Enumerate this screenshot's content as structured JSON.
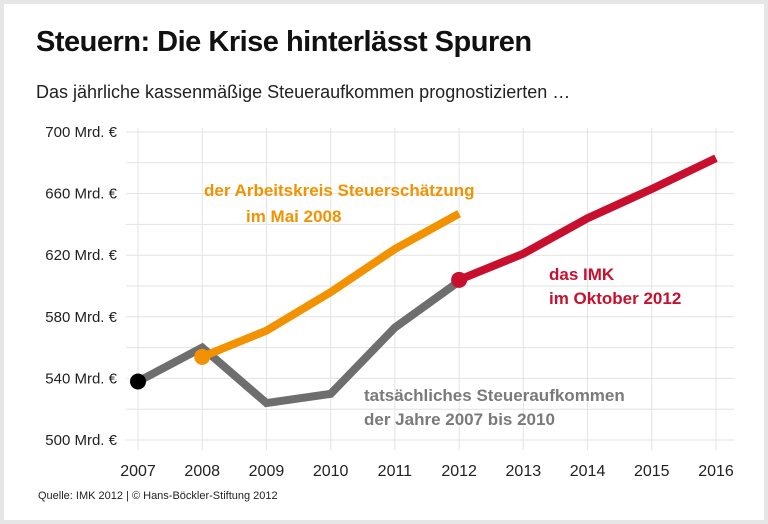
{
  "title": "Steuern: Die Krise hinterlässt Spuren",
  "subtitle": "Das jährliche kassenmäßige Steueraufkommen prognostizierten …",
  "footer": "Quelle: IMK 2012 | © Hans-Böckler-Stiftung 2012",
  "chart_data": {
    "type": "line",
    "title": "Steuern: Die Krise hinterlässt Spuren",
    "subtitle": "Das jährliche kassenmäßige Steueraufkommen prognostizierten …",
    "xlabel": "",
    "ylabel": "",
    "xlim": [
      2007,
      2016
    ],
    "ylim": [
      500,
      700
    ],
    "x_ticks": [
      "2007",
      "2008",
      "2009",
      "2010",
      "2011",
      "2012",
      "2013",
      "2014",
      "2015",
      "2016"
    ],
    "y_ticks": [
      {
        "value": 700,
        "label": "700 Mrd. €"
      },
      {
        "value": 660,
        "label": "660 Mrd. €"
      },
      {
        "value": 620,
        "label": "620 Mrd. €"
      },
      {
        "value": 580,
        "label": "580 Mrd. €"
      },
      {
        "value": 540,
        "label": "540 Mrd. €"
      },
      {
        "value": 500,
        "label": "500 Mrd. €"
      }
    ],
    "grid": true,
    "series": [
      {
        "name": "tatsächliches Steueraufkommen der Jahre 2007 bis 2010",
        "label_lines": [
          "tatsächliches Steueraufkommen",
          "der Jahre 2007 bis 2010"
        ],
        "color": "#6e6e6e",
        "points": [
          [
            2007,
            538
          ],
          [
            2008,
            560
          ],
          [
            2009,
            524
          ],
          [
            2010,
            530
          ],
          [
            2011,
            573
          ],
          [
            2012,
            603
          ]
        ],
        "start_dot_color": "#000000"
      },
      {
        "name": "der Arbeitskreis Steuerschätzung im Mai 2008",
        "label_lines": [
          "der Arbeitskreis Steuerschätzung",
          "im Mai 2008"
        ],
        "color": "#f39200",
        "points": [
          [
            2008,
            554
          ],
          [
            2009,
            571
          ],
          [
            2010,
            596
          ],
          [
            2011,
            624
          ],
          [
            2012,
            647
          ]
        ],
        "start_dot_color": "#f39200"
      },
      {
        "name": "das IMK im Oktober 2012",
        "label_lines": [
          "das IMK",
          "im Oktober 2012"
        ],
        "color": "#c8102e",
        "points": [
          [
            2012,
            604
          ],
          [
            2013,
            621
          ],
          [
            2014,
            644
          ],
          [
            2015,
            663
          ],
          [
            2016,
            683
          ]
        ],
        "start_dot_color": "#c8102e"
      }
    ]
  }
}
